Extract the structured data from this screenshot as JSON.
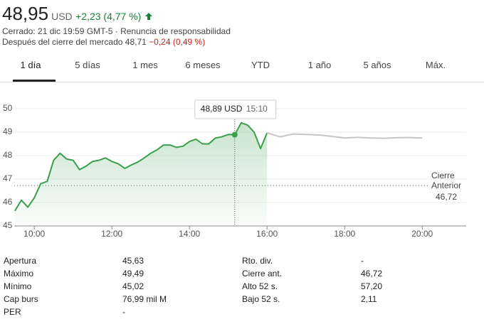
{
  "header": {
    "price": "48,95",
    "currency": "USD",
    "change": "+2,23 (4,77 %)",
    "status": "Cerrado: 21 dic 19:59 GMT-5 ·",
    "disclaimer": "Renuncia de responsabilidad",
    "after_hours": {
      "label": "Después del cierre del mercado",
      "price": "48,71",
      "change": "−0,24 (0,49 %)"
    }
  },
  "tabs": [
    "1 día",
    "5 días",
    "1 mes",
    "6 meses",
    "YTD",
    "1 año",
    "5 años",
    "Máx."
  ],
  "chart_data": {
    "type": "line",
    "xlim": [
      569,
      1268
    ],
    "xticks": [
      {
        "value": 600,
        "label": "10:00"
      },
      {
        "value": 720,
        "label": "12:00"
      },
      {
        "value": 840,
        "label": "14:00"
      },
      {
        "value": 960,
        "label": "16:00"
      },
      {
        "value": 1080,
        "label": "18:00"
      },
      {
        "value": 1200,
        "label": "20:00"
      }
    ],
    "ylim": [
      45,
      51
    ],
    "yticks": [
      45,
      46,
      47,
      48,
      49,
      50
    ],
    "grid": true,
    "series": [
      {
        "color": "#3a9e4a",
        "fill": true,
        "x": [
          570,
          580,
          590,
          600,
          610,
          620,
          630,
          640,
          650,
          660,
          670,
          680,
          690,
          700,
          710,
          720,
          730,
          740,
          750,
          760,
          770,
          780,
          790,
          800,
          810,
          820,
          830,
          840,
          850,
          860,
          870,
          880,
          890,
          900,
          910,
          920,
          930,
          940,
          950,
          960
        ],
        "values": [
          45.64,
          46.1,
          45.8,
          46.2,
          46.8,
          46.9,
          47.8,
          48.1,
          47.85,
          47.8,
          47.4,
          47.55,
          47.75,
          47.8,
          47.9,
          47.75,
          47.65,
          47.45,
          47.6,
          47.72,
          47.9,
          48.1,
          48.25,
          48.45,
          48.45,
          48.35,
          48.4,
          48.6,
          48.7,
          48.5,
          48.5,
          48.75,
          48.8,
          48.9,
          48.89,
          49.4,
          49.3,
          49.0,
          48.3,
          48.97
        ]
      },
      {
        "color": "#c6c6c6",
        "fill": false,
        "x": [
          960,
          980,
          1000,
          1020,
          1040,
          1060,
          1080,
          1100,
          1120,
          1140,
          1160,
          1180,
          1200
        ],
        "values": [
          48.97,
          48.8,
          48.92,
          48.9,
          48.88,
          48.82,
          48.75,
          48.78,
          48.75,
          48.74,
          48.76,
          48.77,
          48.75
        ]
      }
    ],
    "reference": {
      "label": "Cierre Anterior",
      "value": 46.72,
      "value_label": "46,72"
    },
    "tooltip": {
      "x": 910,
      "x_label": "15:10",
      "value": 48.89,
      "value_label": "48,89 USD"
    }
  },
  "stats": [
    [
      [
        "Apertura",
        "45,63"
      ],
      [
        "Máximo",
        "49,49"
      ],
      [
        "Mínimo",
        "45,02"
      ],
      [
        "Cap burs",
        "76,99 mil M"
      ],
      [
        "PER",
        "-"
      ]
    ],
    [
      [
        "Rto. div.",
        "-"
      ],
      [
        "Cierre ant.",
        "46,72"
      ],
      [
        "Alto 52 s.",
        "57,20"
      ],
      [
        "Bajo 52 s.",
        "2,11"
      ]
    ]
  ]
}
